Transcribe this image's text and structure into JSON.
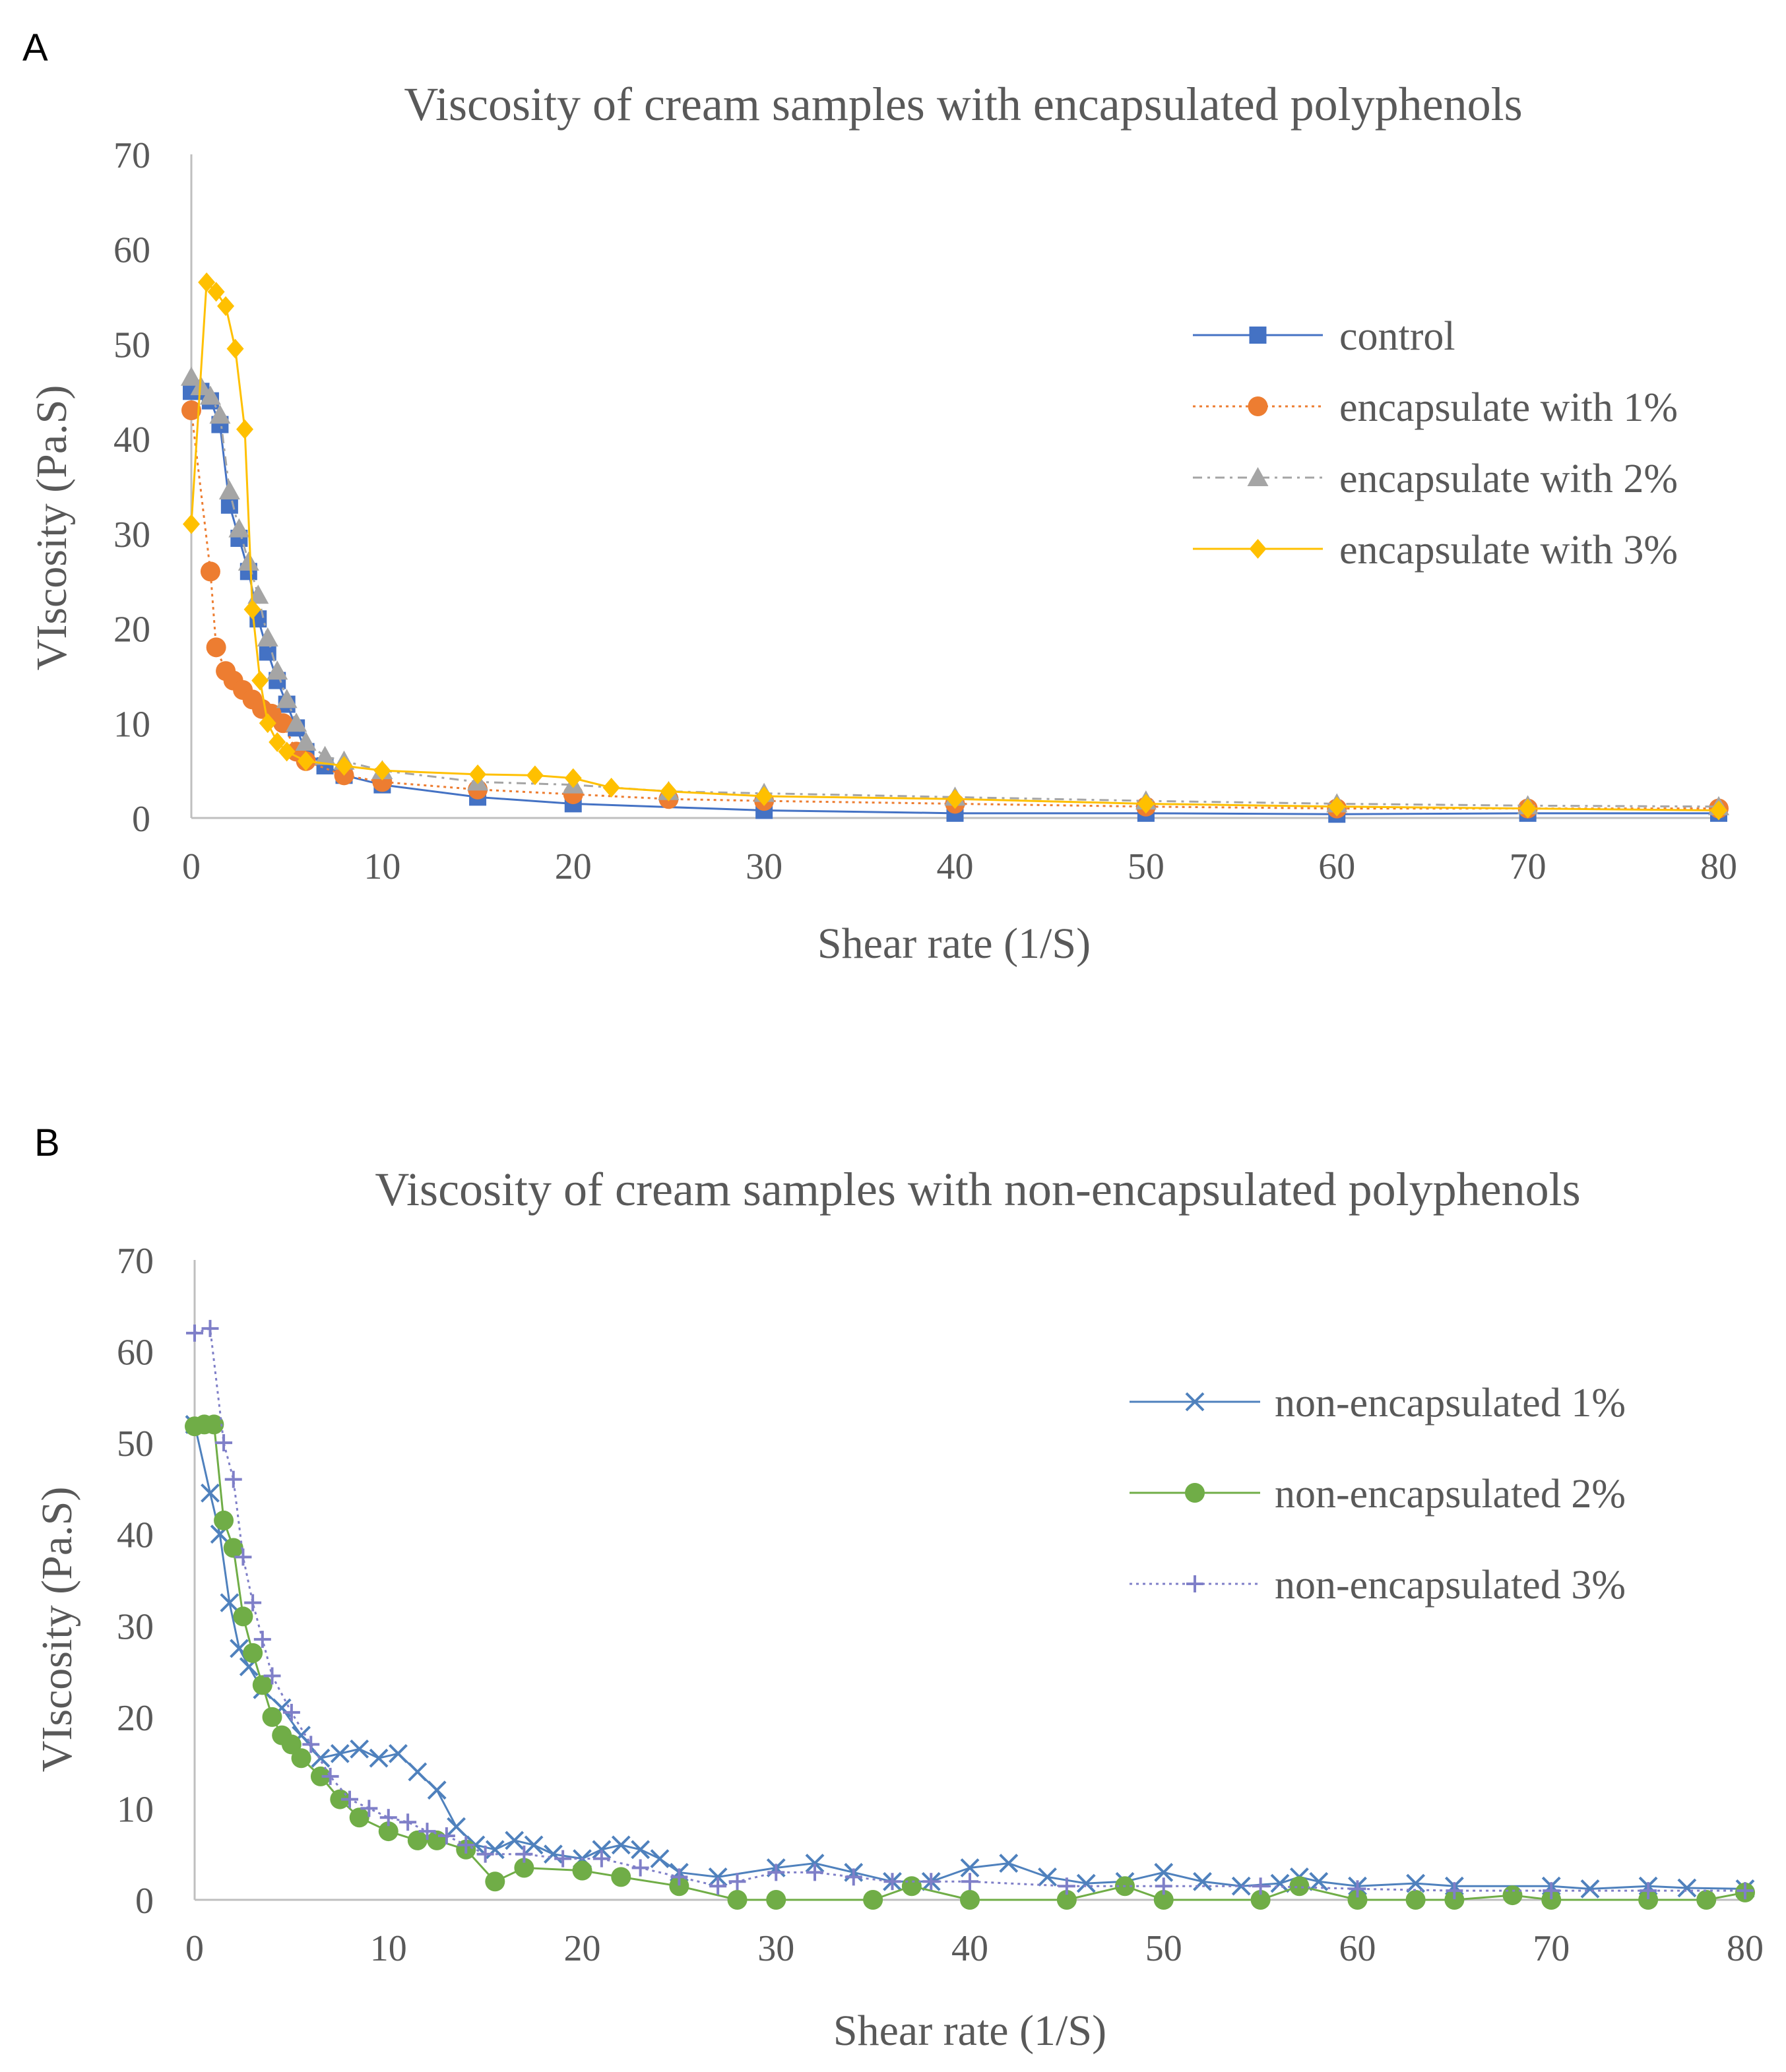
{
  "chart_data": [
    {
      "panel_label": "A",
      "type": "line",
      "title": "Viscosity of cream samples with encapsulated polyphenols",
      "xlabel": "Shear rate (1/S)",
      "ylabel": "VIscosity (Pa.S)",
      "xlim": [
        0,
        80
      ],
      "ylim": [
        0,
        70
      ],
      "xticks": [
        "0",
        "10",
        "20",
        "30",
        "40",
        "50",
        "60",
        "70",
        "80"
      ],
      "yticks": [
        "0",
        "10",
        "20",
        "30",
        "40",
        "50",
        "60",
        "70"
      ],
      "legend_position": "right",
      "series": [
        {
          "name": "control",
          "color": "#4472C4",
          "marker": "square",
          "dash": "solid",
          "points": [
            [
              0,
              45
            ],
            [
              0.5,
              45
            ],
            [
              1,
              44
            ],
            [
              1.5,
              41.5
            ],
            [
              2,
              33
            ],
            [
              2.5,
              29.5
            ],
            [
              3,
              26
            ],
            [
              3.5,
              21
            ],
            [
              4,
              17.5
            ],
            [
              4.5,
              14.5
            ],
            [
              5,
              12
            ],
            [
              5.5,
              9.5
            ],
            [
              6,
              7
            ],
            [
              7,
              5.5
            ],
            [
              8,
              4.5
            ],
            [
              10,
              3.5
            ],
            [
              15,
              2.2
            ],
            [
              20,
              1.5
            ],
            [
              30,
              0.8
            ],
            [
              40,
              0.5
            ],
            [
              50,
              0.5
            ],
            [
              60,
              0.4
            ],
            [
              70,
              0.5
            ],
            [
              80,
              0.5
            ]
          ]
        },
        {
          "name": "encapsulate with 1%",
          "color": "#ED7D31",
          "marker": "circle",
          "dash": "dotted",
          "points": [
            [
              0,
              43
            ],
            [
              1,
              26
            ],
            [
              1.3,
              18
            ],
            [
              1.8,
              15.5
            ],
            [
              2.2,
              14.5
            ],
            [
              2.7,
              13.5
            ],
            [
              3.2,
              12.5
            ],
            [
              3.7,
              11.5
            ],
            [
              4.2,
              11
            ],
            [
              4.8,
              10
            ],
            [
              5.5,
              7
            ],
            [
              6,
              6
            ],
            [
              8,
              4.5
            ],
            [
              10,
              3.8
            ],
            [
              15,
              3
            ],
            [
              20,
              2.5
            ],
            [
              25,
              2
            ],
            [
              30,
              1.8
            ],
            [
              40,
              1.5
            ],
            [
              50,
              1.2
            ],
            [
              60,
              1
            ],
            [
              70,
              1
            ],
            [
              80,
              1
            ]
          ]
        },
        {
          "name": "encapsulate with 2%",
          "color": "#A5A5A5",
          "marker": "triangle",
          "dash": "dashdot",
          "points": [
            [
              0,
              46.5
            ],
            [
              0.5,
              45.5
            ],
            [
              1,
              44.5
            ],
            [
              1.5,
              42.5
            ],
            [
              2,
              34.5
            ],
            [
              2.5,
              30.5
            ],
            [
              3,
              27
            ],
            [
              3.5,
              23.5
            ],
            [
              4,
              19
            ],
            [
              4.5,
              15.5
            ],
            [
              5,
              12.5
            ],
            [
              5.5,
              10
            ],
            [
              6,
              8
            ],
            [
              7,
              6.5
            ],
            [
              8,
              6
            ],
            [
              10,
              5
            ],
            [
              15,
              3.8
            ],
            [
              20,
              3.5
            ],
            [
              25,
              2.8
            ],
            [
              30,
              2.6
            ],
            [
              40,
              2.2
            ],
            [
              50,
              1.8
            ],
            [
              60,
              1.5
            ],
            [
              70,
              1.3
            ],
            [
              80,
              1.2
            ]
          ]
        },
        {
          "name": "encapsulate with 3%",
          "color": "#FFC000",
          "marker": "diamond",
          "dash": "solid",
          "points": [
            [
              0,
              31
            ],
            [
              0.8,
              56.5
            ],
            [
              1.3,
              55.5
            ],
            [
              1.8,
              54
            ],
            [
              2.3,
              49.5
            ],
            [
              2.8,
              41
            ],
            [
              3.2,
              22
            ],
            [
              3.6,
              14.5
            ],
            [
              4,
              10
            ],
            [
              4.5,
              8
            ],
            [
              5,
              7
            ],
            [
              6,
              6
            ],
            [
              8,
              5.5
            ],
            [
              10,
              5
            ],
            [
              15,
              4.6
            ],
            [
              18,
              4.5
            ],
            [
              20,
              4.2
            ],
            [
              22,
              3.2
            ],
            [
              25,
              2.8
            ],
            [
              30,
              2.3
            ],
            [
              40,
              2
            ],
            [
              50,
              1.5
            ],
            [
              60,
              1.2
            ],
            [
              70,
              1
            ],
            [
              80,
              0.8
            ]
          ]
        }
      ]
    },
    {
      "panel_label": "B",
      "type": "line",
      "title": "Viscosity of cream samples with non-encapsulated polyphenols",
      "xlabel": "Shear rate (1/S)",
      "ylabel": "VIscosity (Pa.S)",
      "xlim": [
        0,
        80
      ],
      "ylim": [
        0,
        70
      ],
      "xticks": [
        "0",
        "10",
        "20",
        "30",
        "40",
        "50",
        "60",
        "70",
        "80"
      ],
      "yticks": [
        "0",
        "10",
        "20",
        "30",
        "40",
        "50",
        "60",
        "70"
      ],
      "legend_position": "right",
      "series": [
        {
          "name": "non-encapsulated 1%",
          "color": "#4F81BD",
          "marker": "x",
          "dash": "solid",
          "points": [
            [
              0,
              52
            ],
            [
              0.8,
              44.5
            ],
            [
              1.3,
              40
            ],
            [
              1.8,
              32.5
            ],
            [
              2.3,
              27.5
            ],
            [
              2.8,
              25.5
            ],
            [
              3.5,
              23
            ],
            [
              4.5,
              21
            ],
            [
              5.5,
              18
            ],
            [
              6.5,
              15.5
            ],
            [
              7.5,
              16
            ],
            [
              8.5,
              16.5
            ],
            [
              9.5,
              15.5
            ],
            [
              10.5,
              16
            ],
            [
              11.5,
              14
            ],
            [
              12.5,
              12
            ],
            [
              13.5,
              8
            ],
            [
              14.5,
              6
            ],
            [
              15.5,
              5.5
            ],
            [
              16.5,
              6.5
            ],
            [
              17.5,
              6
            ],
            [
              18.5,
              5
            ],
            [
              20,
              4.5
            ],
            [
              21,
              5.5
            ],
            [
              22,
              6
            ],
            [
              23,
              5.5
            ],
            [
              24,
              4.5
            ],
            [
              25,
              3
            ],
            [
              27,
              2.5
            ],
            [
              30,
              3.5
            ],
            [
              32,
              4
            ],
            [
              34,
              3
            ],
            [
              36,
              2
            ],
            [
              38,
              2
            ],
            [
              40,
              3.5
            ],
            [
              42,
              4
            ],
            [
              44,
              2.5
            ],
            [
              46,
              1.8
            ],
            [
              48,
              2
            ],
            [
              50,
              3
            ],
            [
              52,
              2
            ],
            [
              54,
              1.5
            ],
            [
              56,
              1.8
            ],
            [
              57,
              2.5
            ],
            [
              58,
              2
            ],
            [
              60,
              1.5
            ],
            [
              63,
              1.8
            ],
            [
              65,
              1.5
            ],
            [
              70,
              1.5
            ],
            [
              72,
              1.2
            ],
            [
              75,
              1.5
            ],
            [
              77,
              1.3
            ],
            [
              80,
              1.2
            ]
          ]
        },
        {
          "name": "non-encapsulated 2%",
          "color": "#70AD47",
          "marker": "circle",
          "dash": "solid",
          "points": [
            [
              0,
              51.8
            ],
            [
              0.5,
              52
            ],
            [
              1,
              52
            ],
            [
              1.5,
              41.5
            ],
            [
              2,
              38.5
            ],
            [
              2.5,
              31
            ],
            [
              3,
              27
            ],
            [
              3.5,
              23.5
            ],
            [
              4,
              20
            ],
            [
              4.5,
              18
            ],
            [
              5,
              17
            ],
            [
              5.5,
              15.5
            ],
            [
              6.5,
              13.5
            ],
            [
              7.5,
              11
            ],
            [
              8.5,
              9
            ],
            [
              10,
              7.5
            ],
            [
              11.5,
              6.5
            ],
            [
              12.5,
              6.5
            ],
            [
              14,
              5.5
            ],
            [
              15.5,
              2
            ],
            [
              17,
              3.5
            ],
            [
              20,
              3.2
            ],
            [
              22,
              2.5
            ],
            [
              25,
              1.5
            ],
            [
              28,
              0
            ],
            [
              30,
              0
            ],
            [
              35,
              0
            ],
            [
              37,
              1.5
            ],
            [
              40,
              0
            ],
            [
              45,
              0
            ],
            [
              48,
              1.5
            ],
            [
              50,
              0
            ],
            [
              55,
              0
            ],
            [
              57,
              1.5
            ],
            [
              60,
              0
            ],
            [
              63,
              0
            ],
            [
              65,
              0
            ],
            [
              68,
              0.5
            ],
            [
              70,
              0
            ],
            [
              75,
              0
            ],
            [
              78,
              0
            ],
            [
              80,
              0.8
            ]
          ]
        },
        {
          "name": "non-encapsulated 3%",
          "color": "#7F7FC8",
          "marker": "plus",
          "dash": "dotted",
          "points": [
            [
              0,
              62
            ],
            [
              0.8,
              62.5
            ],
            [
              1.5,
              50
            ],
            [
              2,
              46
            ],
            [
              2.5,
              37.5
            ],
            [
              3,
              32.5
            ],
            [
              3.5,
              28.5
            ],
            [
              4,
              24.5
            ],
            [
              5,
              20.5
            ],
            [
              6,
              17
            ],
            [
              7,
              13.5
            ],
            [
              8,
              11
            ],
            [
              9,
              10
            ],
            [
              10,
              9
            ],
            [
              11,
              8.5
            ],
            [
              12,
              7.5
            ],
            [
              13,
              7
            ],
            [
              14,
              6
            ],
            [
              15,
              5
            ],
            [
              17,
              5
            ],
            [
              19,
              4.5
            ],
            [
              21,
              4.5
            ],
            [
              23,
              3.5
            ],
            [
              25,
              2.5
            ],
            [
              27,
              1.5
            ],
            [
              28,
              2
            ],
            [
              30,
              3
            ],
            [
              32,
              3
            ],
            [
              34,
              2.5
            ],
            [
              36,
              2
            ],
            [
              38,
              2
            ],
            [
              40,
              2
            ],
            [
              45,
              1.5
            ],
            [
              50,
              1.5
            ],
            [
              55,
              1.5
            ],
            [
              60,
              1.2
            ],
            [
              65,
              1
            ],
            [
              70,
              1
            ],
            [
              75,
              1
            ],
            [
              80,
              1
            ]
          ]
        }
      ]
    }
  ]
}
